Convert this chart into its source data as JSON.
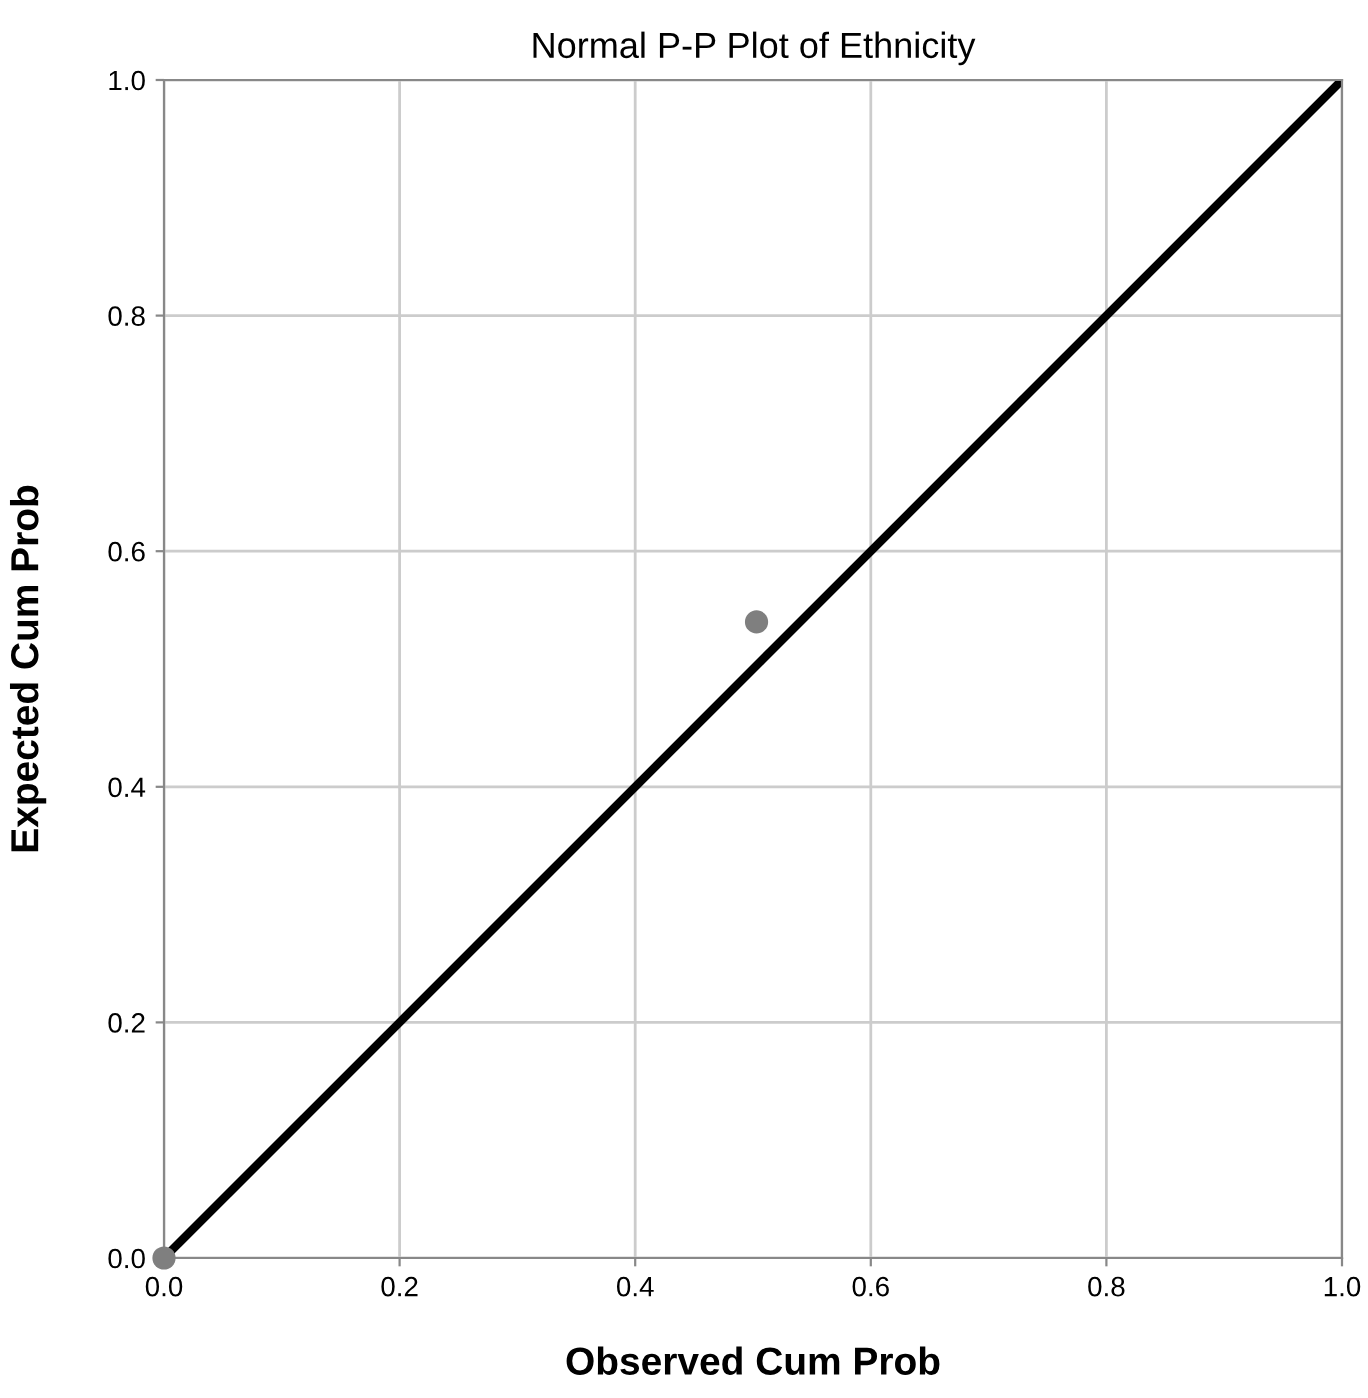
{
  "chart_data": {
    "type": "scatter",
    "title": "Normal P-P Plot of Ethnicity",
    "xlabel": "Observed Cum Prob",
    "ylabel": "Expected Cum Prob",
    "series": [
      {
        "color": "#7f7f7f",
        "x": [
          0.0,
          0.503
        ],
        "values": [
          0.0,
          0.54
        ]
      },
      {
        "type": "line",
        "color": "#000000",
        "x": [
          0,
          1
        ],
        "values": [
          0,
          1
        ]
      }
    ],
    "xlim": [
      0,
      1
    ],
    "ylim": [
      0,
      1
    ],
    "xticks": [
      {
        "value": 0,
        "label": "0.0"
      },
      {
        "value": 0.2,
        "label": "0.2"
      },
      {
        "value": 0.4,
        "label": "0.4"
      },
      {
        "value": 0.6,
        "label": "0.6"
      },
      {
        "value": 0.8,
        "label": "0.8"
      },
      {
        "value": 1,
        "label": "1.0"
      }
    ],
    "yticks": [
      {
        "value": 0,
        "label": "0.0"
      },
      {
        "value": 0.2,
        "label": "0.2"
      },
      {
        "value": 0.4,
        "label": "0.4"
      },
      {
        "value": 0.6,
        "label": "0.6"
      },
      {
        "value": 0.8,
        "label": "0.8"
      },
      {
        "value": 1,
        "label": "1.0"
      }
    ],
    "grid": true,
    "legend": false
  }
}
